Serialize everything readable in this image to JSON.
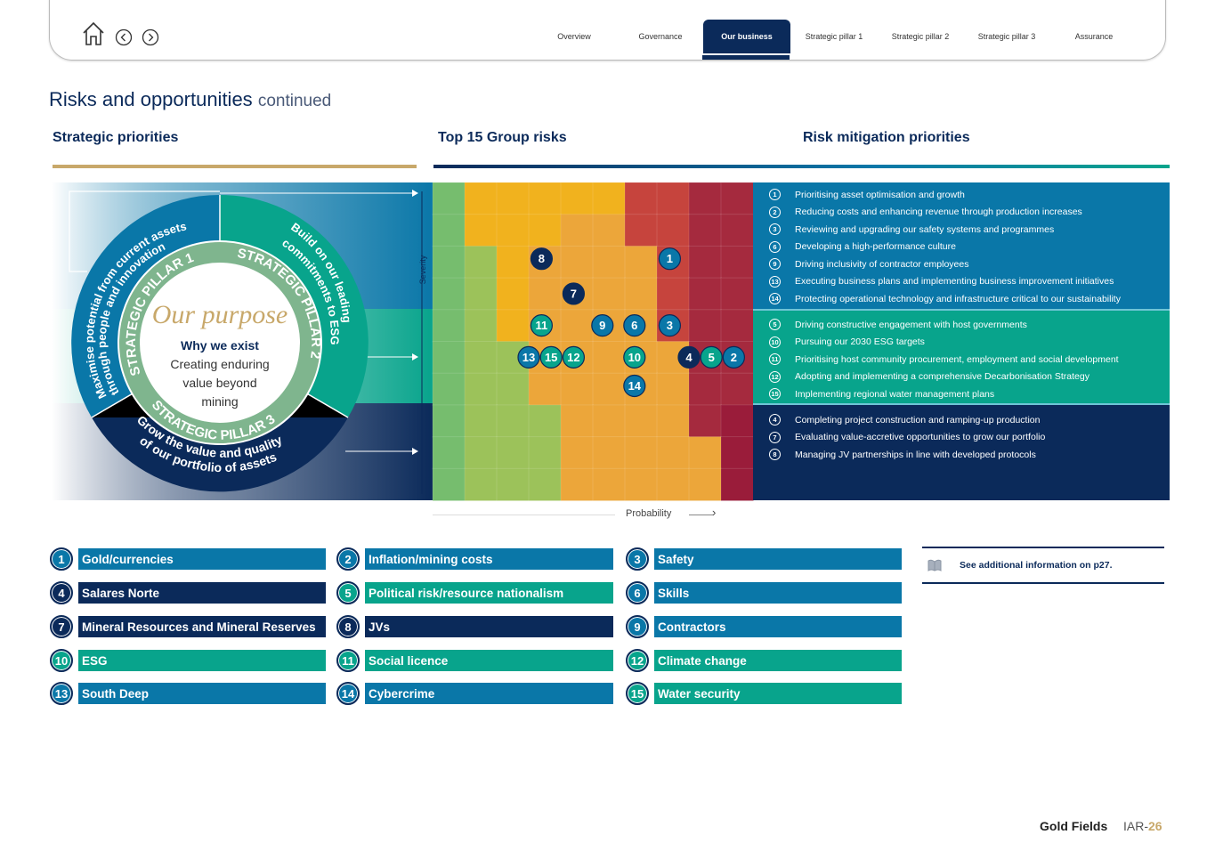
{
  "nav": {
    "icons": [
      "home-icon",
      "back-icon",
      "forward-icon"
    ],
    "tabs": [
      {
        "label": "Overview",
        "active": false
      },
      {
        "label": "Governance",
        "active": false
      },
      {
        "label": "Our business",
        "active": true
      },
      {
        "label": "Strategic pillar 1",
        "active": false
      },
      {
        "label": "Strategic pillar 2",
        "active": false
      },
      {
        "label": "Strategic pillar 3",
        "active": false
      },
      {
        "label": "Assurance",
        "active": false
      }
    ]
  },
  "page": {
    "title": "Risks and opportunities",
    "title_suffix": "continued"
  },
  "columns": {
    "strategic": "Strategic priorities",
    "risks": "Top 15 Group risks",
    "mitigation": "Risk mitigation priorities"
  },
  "colors": {
    "blue": "#0a77a8",
    "teal": "#08a48c",
    "navy": "#0b2a5a",
    "gold": "#c8a86a"
  },
  "diagram": {
    "center_script": "Our purpose",
    "center_heading": "Why we exist",
    "center_lines": [
      "Creating enduring",
      "value beyond",
      "mining"
    ],
    "pillars": [
      {
        "label": "STRATEGIC PILLAR 1",
        "text": [
          "Maximise potential from current assets",
          "through people and innovation"
        ]
      },
      {
        "label": "STRATEGIC PILLAR 2",
        "text": [
          "Build on our leading",
          "commitments to ESG"
        ]
      },
      {
        "label": "STRATEGIC PILLAR 3",
        "text": [
          "Grow the value and quality",
          "of our portfolio of assets"
        ]
      }
    ]
  },
  "chart_data": {
    "type": "scatter",
    "title": "Top 15 Group risks",
    "xlabel": "Probability",
    "ylabel": "Severity",
    "xlim": [
      0,
      10
    ],
    "ylim": [
      0,
      10
    ],
    "points": [
      {
        "id": "1",
        "x": 7.4,
        "y": 7.6,
        "group": "blue"
      },
      {
        "id": "2",
        "x": 9.4,
        "y": 4.5,
        "group": "blue"
      },
      {
        "id": "3",
        "x": 7.4,
        "y": 5.5,
        "group": "blue"
      },
      {
        "id": "4",
        "x": 8.0,
        "y": 4.5,
        "group": "navy"
      },
      {
        "id": "5",
        "x": 8.7,
        "y": 4.5,
        "group": "teal"
      },
      {
        "id": "6",
        "x": 6.3,
        "y": 5.5,
        "group": "blue"
      },
      {
        "id": "7",
        "x": 4.4,
        "y": 6.5,
        "group": "navy"
      },
      {
        "id": "8",
        "x": 3.4,
        "y": 7.6,
        "group": "navy"
      },
      {
        "id": "9",
        "x": 5.3,
        "y": 5.5,
        "group": "blue"
      },
      {
        "id": "10",
        "x": 6.3,
        "y": 4.5,
        "group": "teal"
      },
      {
        "id": "11",
        "x": 3.4,
        "y": 5.5,
        "group": "teal"
      },
      {
        "id": "12",
        "x": 4.4,
        "y": 4.5,
        "group": "teal"
      },
      {
        "id": "13",
        "x": 3.0,
        "y": 4.5,
        "group": "blue"
      },
      {
        "id": "14",
        "x": 6.3,
        "y": 3.6,
        "group": "blue"
      },
      {
        "id": "15",
        "x": 3.7,
        "y": 4.5,
        "group": "teal"
      }
    ]
  },
  "mitigation": [
    {
      "group": "blue",
      "items": [
        {
          "n": "1",
          "text": "Prioritising asset optimisation and growth"
        },
        {
          "n": "2",
          "text": "Reducing costs and enhancing revenue through production increases"
        },
        {
          "n": "3",
          "text": "Reviewing and upgrading our safety systems and programmes"
        },
        {
          "n": "6",
          "text": "Developing a high-performance culture"
        },
        {
          "n": "9",
          "text": "Driving inclusivity of contractor employees"
        },
        {
          "n": "13",
          "text": "Executing business plans and implementing business improvement initiatives"
        },
        {
          "n": "14",
          "text": "Protecting operational technology and infrastructure critical to our sustainability"
        }
      ]
    },
    {
      "group": "teal",
      "items": [
        {
          "n": "5",
          "text": "Driving constructive engagement with host governments"
        },
        {
          "n": "10",
          "text": "Pursuing our 2030 ESG targets"
        },
        {
          "n": "11",
          "text": "Prioritising host community procurement, employment and social development"
        },
        {
          "n": "12",
          "text": "Adopting and implementing a comprehensive Decarbonisation Strategy"
        },
        {
          "n": "15",
          "text": "Implementing regional water management plans"
        }
      ]
    },
    {
      "group": "navy",
      "items": [
        {
          "n": "4",
          "text": "Completing project construction and ramping-up production"
        },
        {
          "n": "7",
          "text": "Evaluating value-accretive opportunities to grow our portfolio"
        },
        {
          "n": "8",
          "text": "Managing JV partnerships in line with developed protocols"
        }
      ]
    }
  ],
  "legend": [
    {
      "n": "1",
      "label": "Gold/currencies",
      "group": "blue"
    },
    {
      "n": "2",
      "label": "Inflation/mining costs",
      "group": "blue"
    },
    {
      "n": "3",
      "label": "Safety",
      "group": "blue"
    },
    {
      "n": "4",
      "label": "Salares Norte",
      "group": "navy"
    },
    {
      "n": "5",
      "label": "Political risk/resource nationalism",
      "group": "teal"
    },
    {
      "n": "6",
      "label": "Skills",
      "group": "blue"
    },
    {
      "n": "7",
      "label": "Mineral Resources and Mineral Reserves",
      "group": "navy"
    },
    {
      "n": "8",
      "label": "JVs",
      "group": "navy"
    },
    {
      "n": "9",
      "label": "Contractors",
      "group": "blue"
    },
    {
      "n": "10",
      "label": "ESG",
      "group": "teal"
    },
    {
      "n": "11",
      "label": "Social licence",
      "group": "teal"
    },
    {
      "n": "12",
      "label": "Climate change",
      "group": "teal"
    },
    {
      "n": "13",
      "label": "South Deep",
      "group": "blue"
    },
    {
      "n": "14",
      "label": "Cybercrime",
      "group": "blue"
    },
    {
      "n": "15",
      "label": "Water security",
      "group": "teal"
    }
  ],
  "see_more": {
    "icon": "book-icon",
    "text": "See additional information on p27."
  },
  "footer": {
    "brand": "Gold Fields",
    "prefix": "IAR-",
    "page": "26"
  }
}
